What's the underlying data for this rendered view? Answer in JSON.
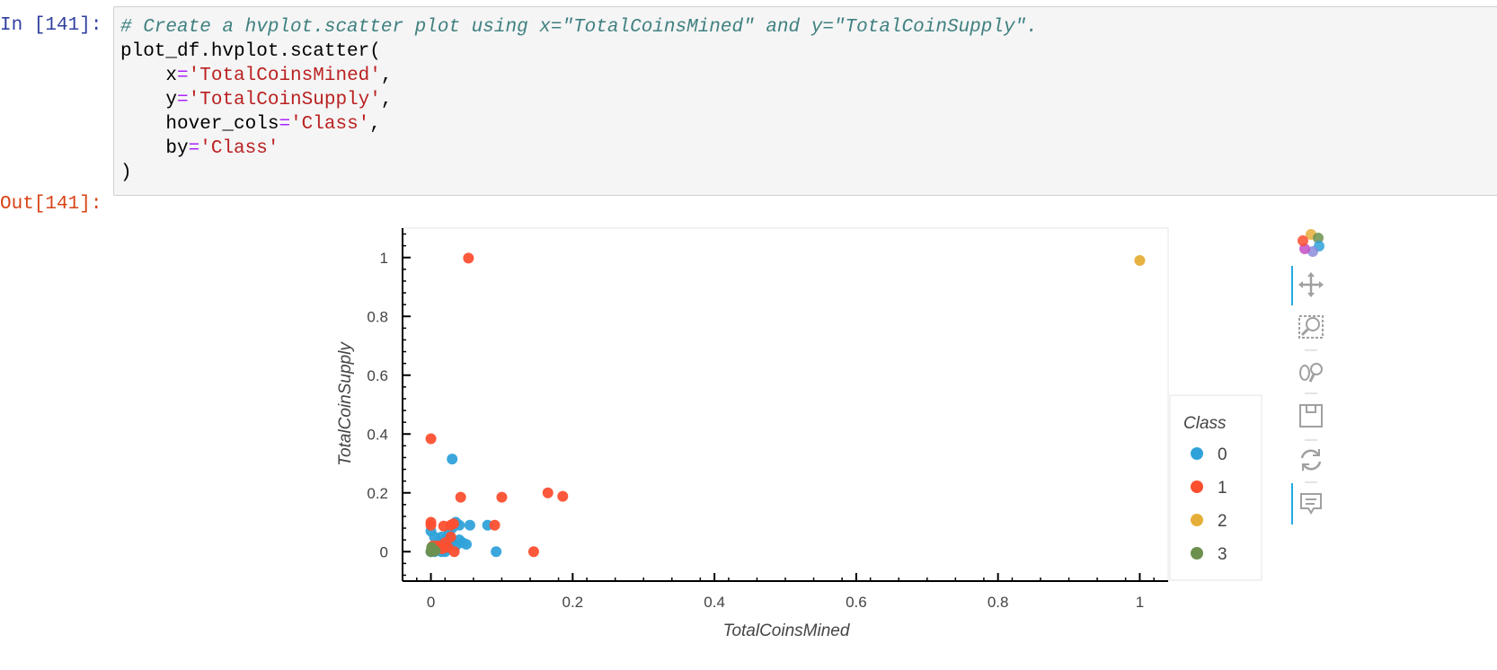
{
  "notebook": {
    "in_prompt": "In [141]:",
    "out_prompt": "Out[141]:",
    "code": {
      "comment": "# Create a hvplot.scatter plot using x=\"TotalCoinsMined\" and y=\"TotalCoinSupply\".",
      "call": "plot_df.hvplot.scatter(",
      "arg_x_name": "x",
      "arg_x_value": "'TotalCoinsMined'",
      "arg_y_name": "y",
      "arg_y_value": "'TotalCoinSupply'",
      "arg_hover_name": "hover_cols",
      "arg_hover_value": "'Class'",
      "arg_by_name": "by",
      "arg_by_value": "'Class'",
      "equals": "=",
      "comma": ",",
      "close": ")"
    }
  },
  "toolbar": {
    "tools": [
      "bokeh-logo-icon",
      "pan-icon",
      "box-zoom-icon",
      "wheel-zoom-icon",
      "save-icon",
      "reset-icon",
      "hover-icon"
    ]
  },
  "chart_data": {
    "type": "scatter",
    "xlabel": "TotalCoinsMined",
    "ylabel": "TotalCoinSupply",
    "xlim": [
      -0.04,
      1.04
    ],
    "ylim": [
      -0.1,
      1.1
    ],
    "xticks": [
      0,
      0.2,
      0.4,
      0.6,
      0.8,
      1
    ],
    "yticks": [
      0,
      0.2,
      0.4,
      0.6,
      0.8,
      1
    ],
    "xtick_labels": [
      "0",
      "0.2",
      "0.4",
      "0.6",
      "0.8",
      "1"
    ],
    "ytick_labels": [
      "0",
      "0.2",
      "0.4",
      "0.6",
      "0.8",
      "1"
    ],
    "legend": {
      "title": "Class",
      "placement": "right"
    },
    "grid": false,
    "series": [
      {
        "name": "0",
        "color": "#30a2da",
        "points": [
          [
            0.03,
            0.315
          ],
          [
            0.0,
            0.07
          ],
          [
            0.005,
            0.05
          ],
          [
            0.01,
            0.03
          ],
          [
            0.015,
            0.05
          ],
          [
            0.02,
            0.04
          ],
          [
            0.025,
            0.06
          ],
          [
            0.03,
            0.08
          ],
          [
            0.035,
            0.1
          ],
          [
            0.04,
            0.09
          ],
          [
            0.04,
            0.04
          ],
          [
            0.045,
            0.03
          ],
          [
            0.055,
            0.09
          ],
          [
            0.08,
            0.09
          ],
          [
            0.092,
            0.0
          ],
          [
            0.0,
            0.0
          ],
          [
            0.005,
            0.0
          ],
          [
            0.01,
            0.01
          ],
          [
            0.015,
            0.0
          ],
          [
            0.02,
            0.0
          ],
          [
            0.025,
            0.02
          ],
          [
            0.03,
            0.03
          ],
          [
            0.035,
            0.02
          ],
          [
            0.012,
            0.02
          ],
          [
            0.022,
            0.01
          ],
          [
            0.05,
            0.025
          ]
        ]
      },
      {
        "name": "1",
        "color": "#fc4f30",
        "points": [
          [
            0.053,
            0.998
          ],
          [
            0.0,
            0.384
          ],
          [
            0.042,
            0.185
          ],
          [
            0.1,
            0.185
          ],
          [
            0.165,
            0.2
          ],
          [
            0.186,
            0.188
          ],
          [
            0.0,
            0.1
          ],
          [
            0.0,
            0.09
          ],
          [
            0.018,
            0.087
          ],
          [
            0.028,
            0.09
          ],
          [
            0.032,
            0.095
          ],
          [
            0.09,
            0.09
          ],
          [
            0.145,
            0.0
          ],
          [
            0.033,
            0.0
          ],
          [
            0.01,
            0.02
          ],
          [
            0.02,
            0.03
          ],
          [
            0.028,
            0.05
          ],
          [
            0.003,
            0.02
          ],
          [
            0.016,
            0.01
          ],
          [
            0.024,
            0.015
          ],
          [
            0.008,
            0.015
          ]
        ]
      },
      {
        "name": "2",
        "color": "#e5ae38",
        "points": [
          [
            1.0,
            0.99
          ]
        ]
      },
      {
        "name": "3",
        "color": "#6d904f",
        "points": [
          [
            0.0,
            0.0
          ],
          [
            0.002,
            0.01
          ],
          [
            0.004,
            0.005
          ],
          [
            0.001,
            0.015
          ],
          [
            0.006,
            0.003
          ]
        ]
      }
    ]
  }
}
